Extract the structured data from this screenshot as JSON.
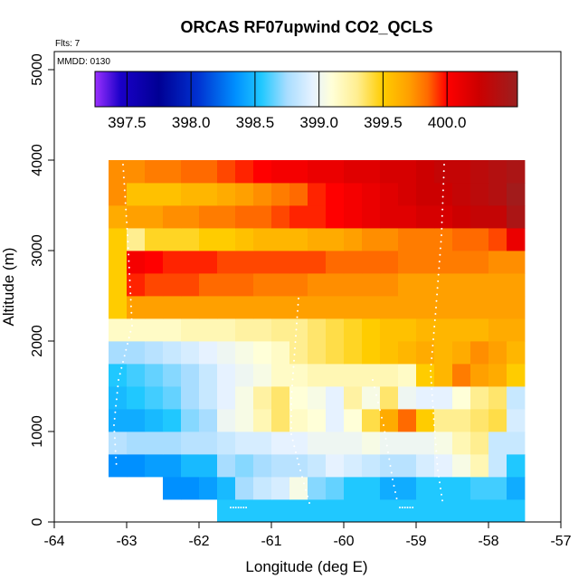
{
  "chart_data": {
    "type": "heatmap",
    "title": "ORCAS RF07upwind CO2_QCLS",
    "xlabel": "Longitude (deg E)",
    "ylabel": "Altitude (m)",
    "annotations": {
      "flights": "Flts: 7",
      "date": "MMDD: 0130"
    },
    "xlim": [
      -64,
      -57
    ],
    "ylim": [
      0,
      5200
    ],
    "x_ticks": [
      -64,
      -63,
      -62,
      -61,
      -60,
      -59,
      -58,
      -57
    ],
    "x_tick_labels": [
      "-64",
      "-63",
      "-62",
      "-61",
      "-60",
      "-59",
      "-58",
      "-57"
    ],
    "y_ticks": [
      0,
      1000,
      2000,
      3000,
      4000,
      5000
    ],
    "y_tick_labels": [
      "0",
      "1000",
      "2000",
      "3000",
      "4000",
      "5000"
    ],
    "colorbar": {
      "min": 397.25,
      "max": 400.55,
      "ticks": [
        397.5,
        398.0,
        398.5,
        399.0,
        399.5,
        400.0
      ],
      "tick_labels": [
        "397.5",
        "398.0",
        "398.5",
        "399.0",
        "399.5",
        "400.0"
      ],
      "stops": [
        {
          "v": 397.25,
          "c": "#9b30ff"
        },
        {
          "v": 397.45,
          "c": "#1a00c8"
        },
        {
          "v": 397.75,
          "c": "#000094"
        },
        {
          "v": 398.05,
          "c": "#0030d0"
        },
        {
          "v": 398.35,
          "c": "#0090ff"
        },
        {
          "v": 398.55,
          "c": "#20c8ff"
        },
        {
          "v": 398.75,
          "c": "#a8ddff"
        },
        {
          "v": 398.95,
          "c": "#e6f2ff"
        },
        {
          "v": 399.1,
          "c": "#ffffd8"
        },
        {
          "v": 399.3,
          "c": "#ffee90"
        },
        {
          "v": 399.5,
          "c": "#ffcc00"
        },
        {
          "v": 399.7,
          "c": "#ffa000"
        },
        {
          "v": 399.85,
          "c": "#ff6a00"
        },
        {
          "v": 400.0,
          "c": "#ff0000"
        },
        {
          "v": 400.25,
          "c": "#cc0000"
        },
        {
          "v": 400.55,
          "c": "#9a2020"
        }
      ]
    },
    "grid": {
      "x_start": -63.25,
      "dx": 0.25,
      "dy": 250,
      "rows": [
        {
          "y0": 0,
          "x0": -61.75,
          "vals": [
            398.55,
            398.55,
            398.55,
            398.55,
            398.55,
            398.55,
            398.55,
            398.55,
            398.55,
            398.55,
            398.55,
            398.55,
            398.55,
            398.55,
            398.55,
            398.55,
            398.55
          ]
        },
        {
          "y0": 250,
          "x0": -62.5,
          "vals": [
            398.35,
            398.35,
            398.4,
            398.5,
            398.75,
            398.85,
            398.9,
            399.05,
            398.7,
            398.65,
            398.55,
            398.55,
            398.45,
            398.45,
            398.55,
            398.55,
            398.55,
            398.6,
            398.6,
            398.45
          ]
        },
        {
          "y0": 500,
          "x0": -63.25,
          "vals": [
            398.35,
            398.35,
            398.4,
            398.4,
            398.5,
            398.5,
            398.75,
            398.7,
            398.75,
            398.8,
            398.8,
            398.85,
            398.95,
            398.9,
            398.85,
            398.8,
            398.8,
            398.9,
            398.95,
            399.05,
            399.2,
            398.85,
            398.55
          ]
        },
        {
          "y0": 750,
          "x0": -63.25,
          "vals": [
            398.8,
            398.75,
            398.75,
            398.75,
            398.8,
            398.8,
            398.85,
            398.9,
            398.9,
            398.95,
            398.95,
            399.0,
            399.0,
            399.0,
            399.05,
            399.0,
            399.0,
            399.0,
            399.05,
            399.2,
            399.3,
            398.85,
            398.85
          ]
        },
        {
          "y0": 1000,
          "x0": -63.25,
          "vals": [
            398.45,
            398.45,
            398.5,
            398.55,
            398.7,
            398.75,
            399.0,
            399.05,
            399.2,
            399.35,
            399.15,
            399.1,
            398.95,
            399.1,
            399.4,
            399.65,
            399.85,
            399.5,
            399.3,
            399.3,
            399.35,
            399.4,
            398.9
          ]
        },
        {
          "y0": 1250,
          "x0": -63.25,
          "vals": [
            398.5,
            398.55,
            398.6,
            398.65,
            398.75,
            398.85,
            398.95,
            399.05,
            399.25,
            399.35,
            399.1,
            399.05,
            398.95,
            399.25,
            399.05,
            399.35,
            399.0,
            398.95,
            398.95,
            399.1,
            399.3,
            399.35,
            398.85
          ]
        },
        {
          "y0": 1500,
          "x0": -63.25,
          "vals": [
            398.55,
            398.6,
            398.65,
            398.7,
            398.75,
            398.85,
            398.95,
            399.0,
            399.05,
            399.15,
            399.15,
            399.2,
            399.2,
            399.2,
            399.2,
            399.2,
            399.15,
            399.5,
            399.6,
            399.8,
            399.7,
            399.65,
            399.5
          ]
        },
        {
          "y0": 1750,
          "x0": -63.25,
          "vals": [
            398.75,
            398.75,
            398.8,
            398.85,
            398.9,
            398.95,
            399.0,
            399.05,
            399.1,
            399.15,
            399.3,
            399.35,
            399.4,
            399.45,
            399.5,
            399.55,
            399.6,
            399.65,
            399.6,
            399.65,
            399.75,
            399.7,
            399.6
          ]
        },
        {
          "y0": 2000,
          "x0": -63.25,
          "vals": [
            399.15,
            399.15,
            399.15,
            399.15,
            399.2,
            399.2,
            399.2,
            399.25,
            399.25,
            399.3,
            399.3,
            399.35,
            399.4,
            399.45,
            399.5,
            399.55,
            399.55,
            399.6,
            399.6,
            399.6,
            399.6,
            399.65,
            399.65
          ]
        },
        {
          "y0": 2250,
          "x0": -63.25,
          "vals": [
            399.5,
            399.7,
            399.7,
            399.7,
            399.7,
            399.7,
            399.7,
            399.7,
            399.7,
            399.7,
            399.7,
            399.7,
            399.7,
            399.7,
            399.7,
            399.7,
            399.7,
            399.7,
            399.7,
            399.7,
            399.7,
            399.7,
            399.7
          ]
        },
        {
          "y0": 2500,
          "x0": -63.25,
          "vals": [
            399.5,
            399.95,
            399.9,
            399.9,
            399.9,
            399.85,
            399.85,
            399.85,
            399.8,
            399.8,
            399.8,
            399.75,
            399.75,
            399.75,
            399.75,
            399.75,
            399.7,
            399.7,
            399.7,
            399.7,
            399.7,
            399.7,
            399.7
          ]
        },
        {
          "y0": 2750,
          "x0": -63.25,
          "vals": [
            399.5,
            400.05,
            400.0,
            399.95,
            399.95,
            399.95,
            399.9,
            399.9,
            399.9,
            399.9,
            399.9,
            399.9,
            399.85,
            399.85,
            399.85,
            399.85,
            399.8,
            399.8,
            399.8,
            399.8,
            399.8,
            399.75,
            399.75
          ]
        },
        {
          "y0": 3000,
          "x0": -63.25,
          "vals": [
            399.5,
            399.3,
            399.45,
            399.45,
            399.45,
            399.5,
            399.5,
            399.55,
            399.6,
            399.6,
            399.6,
            399.65,
            399.65,
            399.7,
            399.75,
            399.75,
            399.8,
            399.8,
            399.8,
            399.85,
            399.85,
            399.9,
            400.1
          ]
        },
        {
          "y0": 3250,
          "x0": -63.25,
          "vals": [
            399.65,
            399.7,
            399.7,
            399.75,
            399.75,
            399.8,
            399.8,
            399.85,
            399.85,
            399.9,
            399.95,
            399.95,
            400.0,
            400.05,
            400.1,
            400.15,
            400.15,
            400.2,
            400.2,
            400.25,
            400.3,
            400.3,
            400.45
          ]
        },
        {
          "y0": 3500,
          "x0": -63.25,
          "vals": [
            399.75,
            399.55,
            399.55,
            399.55,
            399.6,
            399.6,
            399.65,
            399.7,
            399.75,
            399.8,
            399.85,
            399.95,
            400.0,
            400.05,
            400.1,
            400.15,
            400.2,
            400.25,
            400.25,
            400.3,
            400.35,
            400.4,
            400.5
          ]
        },
        {
          "y0": 3750,
          "x0": -63.25,
          "vals": [
            399.75,
            399.75,
            399.8,
            399.8,
            399.85,
            399.85,
            399.9,
            399.95,
            400.0,
            400.05,
            400.05,
            400.1,
            400.1,
            400.15,
            400.15,
            400.2,
            400.2,
            400.25,
            400.3,
            400.3,
            400.35,
            400.4,
            400.45
          ]
        }
      ]
    }
  },
  "style": {
    "point_color": "#ffffff",
    "frame_color": "#000000",
    "background": "#ffffff"
  }
}
